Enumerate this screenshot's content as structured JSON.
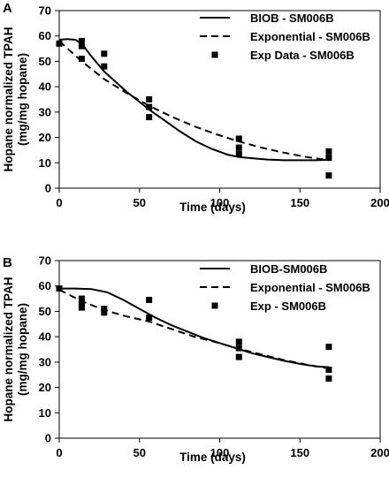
{
  "chart_data": [
    {
      "type": "line",
      "panel_label": "A",
      "xlabel": "Time (days)",
      "ylabel": "Hopane normalized TPAH (mg/mg hopane)",
      "xlim": [
        0,
        200
      ],
      "ylim": [
        0,
        70
      ],
      "xticks": [
        0,
        50,
        100,
        150,
        200
      ],
      "yticks": [
        0,
        10,
        20,
        30,
        40,
        50,
        60,
        70
      ],
      "grid": false,
      "legend_position": "top-right",
      "series": [
        {
          "name": "BIOB - SM006B",
          "style": "solid",
          "x": [
            0,
            5,
            10,
            14,
            20,
            28,
            35,
            42,
            50,
            56,
            65,
            75,
            85,
            95,
            105,
            112,
            120,
            130,
            140,
            150,
            160,
            168
          ],
          "y": [
            58.5,
            58.8,
            58.5,
            57,
            52,
            46,
            42,
            38,
            34,
            31,
            27,
            22.5,
            18.5,
            15.5,
            13.2,
            12.3,
            11.8,
            11.3,
            11.0,
            11.0,
            11.0,
            11.2
          ]
        },
        {
          "name": "Exponential - SM006B",
          "style": "dashed",
          "x": [
            0,
            14,
            28,
            42,
            56,
            70,
            84,
            98,
            112,
            126,
            140,
            154,
            168
          ],
          "y": [
            58,
            50,
            43,
            37.5,
            32.5,
            28.2,
            24.4,
            21.2,
            18.4,
            16.0,
            14.0,
            12.3,
            11.0
          ]
        },
        {
          "name": "Exp Data - SM006B",
          "style": "markers",
          "x": [
            0,
            14,
            14,
            14,
            28,
            28,
            56,
            56,
            56,
            112,
            112,
            112,
            168,
            168,
            168
          ],
          "y": [
            57,
            58,
            56,
            51,
            53,
            48,
            35,
            32,
            28,
            19.5,
            16,
            13.5,
            14.5,
            12,
            5
          ]
        }
      ]
    },
    {
      "type": "line",
      "panel_label": "B",
      "xlabel": "Time (days)",
      "ylabel": "Hopane normalized TPAH (mg/mg hopane)",
      "xlim": [
        0,
        200
      ],
      "ylim": [
        0,
        70
      ],
      "xticks": [
        0,
        50,
        100,
        150,
        200
      ],
      "yticks": [
        0,
        10,
        20,
        30,
        40,
        50,
        60,
        70
      ],
      "grid": false,
      "legend_position": "top-right",
      "series": [
        {
          "name": "BIOB-SM006B",
          "style": "solid",
          "x": [
            0,
            10,
            20,
            30,
            40,
            50,
            60,
            70,
            80,
            90,
            100,
            110,
            120,
            130,
            140,
            150,
            160,
            168
          ],
          "y": [
            59,
            59,
            58.8,
            57.5,
            54.5,
            51,
            47.5,
            44.5,
            42,
            39.5,
            37.5,
            35.5,
            33.5,
            32,
            30.5,
            29.3,
            28.3,
            28
          ]
        },
        {
          "name": "Exponential - SM006B",
          "style": "dashed",
          "x": [
            0,
            14,
            28,
            42,
            56,
            70,
            84,
            98,
            112,
            126,
            140,
            154,
            168
          ],
          "y": [
            58.5,
            54,
            50.5,
            48,
            46,
            43,
            40,
            37.8,
            35.2,
            33,
            30.8,
            29,
            27.5
          ]
        },
        {
          "name": "Exp - SM006B",
          "style": "markers",
          "x": [
            0,
            14,
            14,
            14,
            28,
            28,
            56,
            56,
            112,
            112,
            112,
            168,
            168,
            168
          ],
          "y": [
            59,
            55,
            53,
            51.5,
            51,
            49.5,
            54.5,
            47.5,
            38,
            35.5,
            32,
            36,
            27,
            23.5
          ]
        }
      ]
    }
  ]
}
